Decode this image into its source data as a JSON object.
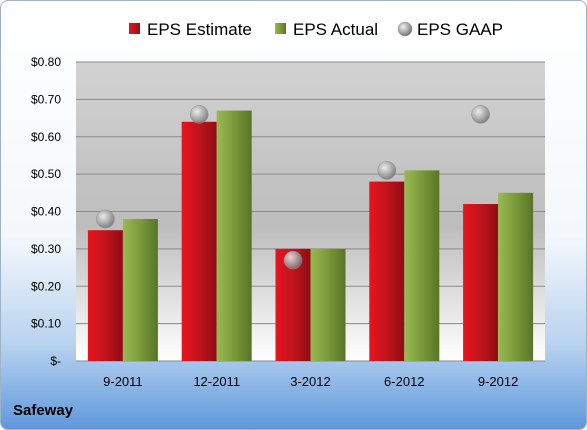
{
  "company": "Safeway",
  "chart_data": {
    "type": "bar",
    "categories": [
      "9-2011",
      "12-2011",
      "3-2012",
      "6-2012",
      "9-2012"
    ],
    "series": [
      {
        "name": "EPS Estimate",
        "kind": "bar",
        "color": "#c0141c",
        "values": [
          0.35,
          0.64,
          0.3,
          0.48,
          0.42
        ]
      },
      {
        "name": "EPS Actual",
        "kind": "bar",
        "color": "#7a9a3a",
        "values": [
          0.38,
          0.67,
          0.3,
          0.51,
          0.45
        ]
      },
      {
        "name": "EPS GAAP",
        "kind": "marker",
        "color": "#a0a0a0",
        "values": [
          0.38,
          0.66,
          0.27,
          0.51,
          0.66
        ]
      }
    ],
    "ylim": [
      0,
      0.8
    ],
    "yticks": [
      0,
      0.1,
      0.2,
      0.3,
      0.4,
      0.5,
      0.6,
      0.7,
      0.8
    ],
    "ytick_labels": [
      "$-",
      "$0.10",
      "$0.20",
      "$0.30",
      "$0.40",
      "$0.50",
      "$0.60",
      "$0.70",
      "$0.80"
    ],
    "grid": true,
    "legend_position": "top"
  }
}
